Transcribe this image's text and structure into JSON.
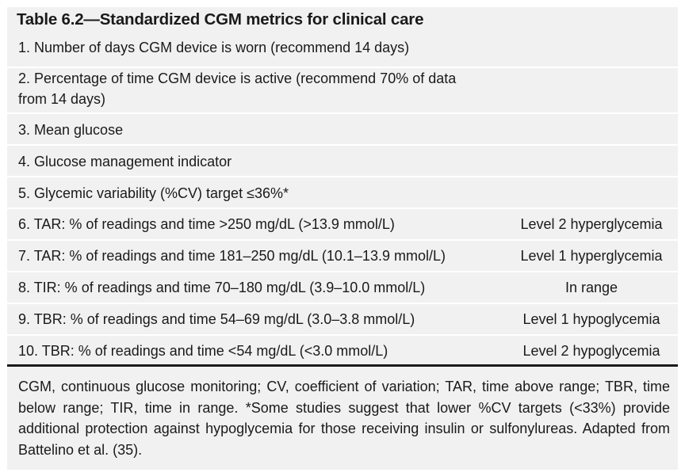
{
  "table": {
    "title": "Table 6.2—Standardized CGM metrics for clinical care",
    "rows": [
      {
        "text": "1. Number of days CGM device is worn (recommend 14 days)",
        "level": ""
      },
      {
        "text": "2. Percentage of time CGM device is active (recommend 70% of data from 14 days)",
        "level": ""
      },
      {
        "text": "3. Mean glucose",
        "level": ""
      },
      {
        "text": "4. Glucose management indicator",
        "level": ""
      },
      {
        "text": "5. Glycemic variability (%CV) target ≤36%*",
        "level": ""
      },
      {
        "text": "6. TAR: % of readings and time >250 mg/dL (>13.9 mmol/L)",
        "level": "Level 2 hyperglycemia"
      },
      {
        "text": "7. TAR: % of readings and time 181–250 mg/dL (10.1–13.9 mmol/L)",
        "level": "Level 1 hyperglycemia"
      },
      {
        "text": "8. TIR: % of readings and time 70–180 mg/dL (3.9–10.0 mmol/L)",
        "level": "In range"
      },
      {
        "text": "9. TBR: % of readings and time 54–69 mg/dL (3.0–3.8 mmol/L)",
        "level": "Level 1 hypoglycemia"
      },
      {
        "text": "10. TBR: % of readings and time <54 mg/dL (<3.0 mmol/L)",
        "level": "Level 2 hypoglycemia"
      }
    ],
    "footnote": "CGM, continuous glucose monitoring; CV, coefficient of variation; TAR, time above range; TBR, time below range; TIR, time in range. *Some studies suggest that lower %CV targets (<33%) provide additional protection against hypoglycemia for those receiving insulin or sulfonylureas. Adapted from Battelino et al. (35)."
  }
}
